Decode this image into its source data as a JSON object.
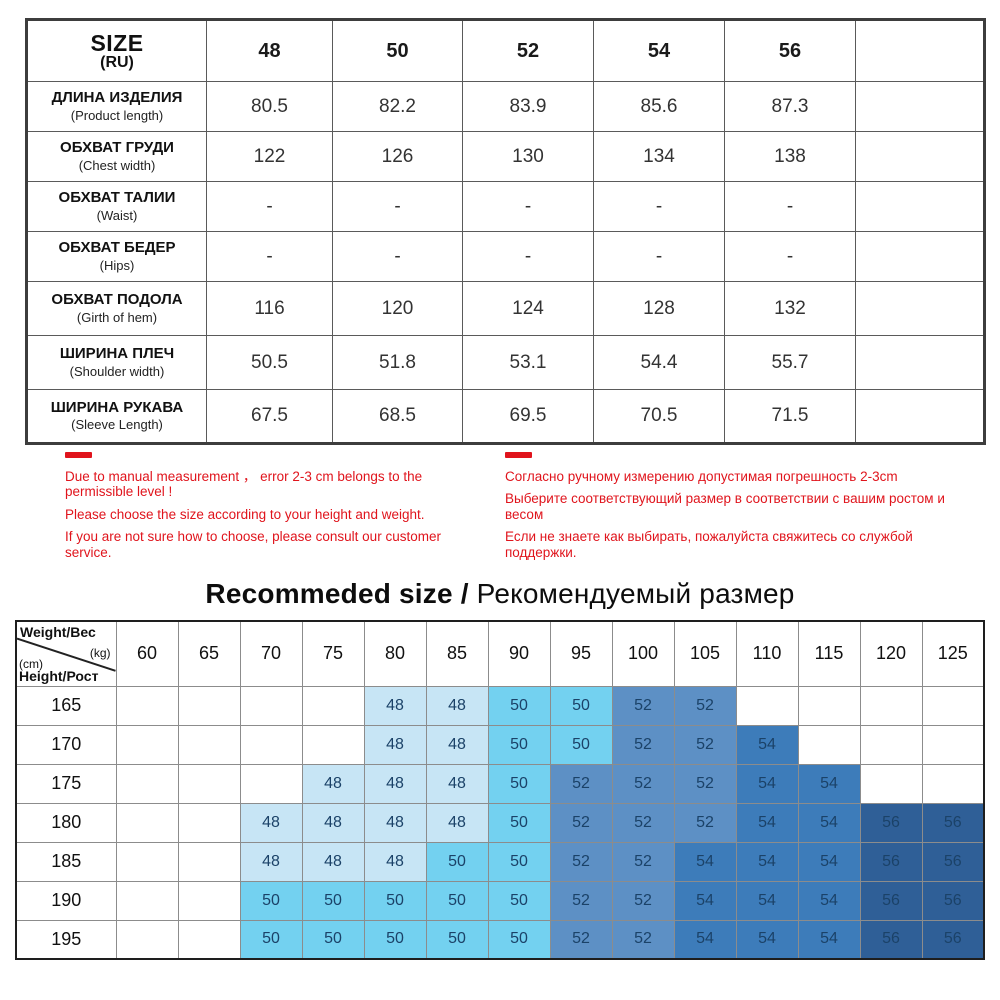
{
  "size_table": {
    "title": "SIZE",
    "title_sub": "(RU)",
    "columns": [
      "48",
      "50",
      "52",
      "54",
      "56"
    ],
    "rows": [
      {
        "ru": "ДЛИНА ИЗДЕЛИЯ",
        "en": "(Product length)",
        "values": [
          "80.5",
          "82.2",
          "83.9",
          "85.6",
          "87.3"
        ]
      },
      {
        "ru": "ОБХВАТ ГРУДИ",
        "en": "(Chest width)",
        "values": [
          "122",
          "126",
          "130",
          "134",
          "138"
        ]
      },
      {
        "ru": "ОБХВАТ ТАЛИИ",
        "en": "(Waist)",
        "values": [
          "-",
          "-",
          "-",
          "-",
          "-"
        ]
      },
      {
        "ru": "ОБХВАТ БЕДЕР",
        "en": "(Hips)",
        "values": [
          "-",
          "-",
          "-",
          "-",
          "-"
        ]
      },
      {
        "ru": "ОБХВАТ ПОДОЛА",
        "en": "(Girth of hem)",
        "values": [
          "116",
          "120",
          "124",
          "128",
          "132"
        ]
      },
      {
        "ru": "ШИРИНА ПЛЕЧ",
        "en": "(Shoulder width)",
        "values": [
          "50.5",
          "51.8",
          "53.1",
          "54.4",
          "55.7"
        ]
      },
      {
        "ru": "ШИРИНА РУКАВА",
        "en": "(Sleeve Length)",
        "values": [
          "67.5",
          "68.5",
          "69.5",
          "70.5",
          "71.5"
        ]
      }
    ]
  },
  "notes_en": {
    "lines": [
      "Due to manual measurement ， error 2-3 cm belongs to the permissible level !",
      "Please choose the size according to your height and weight.",
      "If you are not sure how to choose, please consult our customer service."
    ]
  },
  "notes_ru": {
    "lines": [
      "Согласно ручному измерению допустимая погрешность 2-3cm",
      "Выберите соответствующий размер в соответствии с вашим ростом и весом",
      "Если не знаете как выбирать, пожалуйста свяжитесь со службой поддержки."
    ]
  },
  "recommended": {
    "title_bold": "Recommeded size /",
    "title_regular": " Рекомендуемый размер"
  },
  "rec_table": {
    "corner": {
      "weight": "Weight/Вес",
      "kg": "(kg)",
      "cm": "(cm)",
      "height": "Height/Рост"
    },
    "weights": [
      "60",
      "65",
      "70",
      "75",
      "80",
      "85",
      "90",
      "95",
      "100",
      "105",
      "110",
      "115",
      "120",
      "125"
    ],
    "rows": [
      {
        "height": "165",
        "cells": [
          "",
          "",
          "",
          "",
          "48",
          "48",
          "50",
          "50",
          "52",
          "52",
          "",
          "",
          "",
          ""
        ]
      },
      {
        "height": "170",
        "cells": [
          "",
          "",
          "",
          "",
          "48",
          "48",
          "50",
          "50",
          "52",
          "52",
          "54",
          "",
          "",
          ""
        ]
      },
      {
        "height": "175",
        "cells": [
          "",
          "",
          "",
          "48",
          "48",
          "48",
          "50",
          "52",
          "52",
          "52",
          "54",
          "54",
          "",
          ""
        ]
      },
      {
        "height": "180",
        "cells": [
          "",
          "",
          "48",
          "48",
          "48",
          "48",
          "50",
          "52",
          "52",
          "52",
          "54",
          "54",
          "56",
          "56"
        ]
      },
      {
        "height": "185",
        "cells": [
          "",
          "",
          "48",
          "48",
          "48",
          "50",
          "50",
          "52",
          "52",
          "54",
          "54",
          "54",
          "56",
          "56"
        ]
      },
      {
        "height": "190",
        "cells": [
          "",
          "",
          "50",
          "50",
          "50",
          "50",
          "50",
          "52",
          "52",
          "54",
          "54",
          "54",
          "56",
          "56"
        ]
      },
      {
        "height": "195",
        "cells": [
          "",
          "",
          "50",
          "50",
          "50",
          "50",
          "50",
          "52",
          "52",
          "54",
          "54",
          "54",
          "56",
          "56"
        ]
      }
    ]
  },
  "colors": {
    "size48": "#c7e5f5",
    "size50": "#73d1f0",
    "size52": "#5d90c5",
    "size54": "#3d7cba",
    "size56": "#2f5f97",
    "cell_text": "#1b4268",
    "accent_red": "#e0141c"
  }
}
